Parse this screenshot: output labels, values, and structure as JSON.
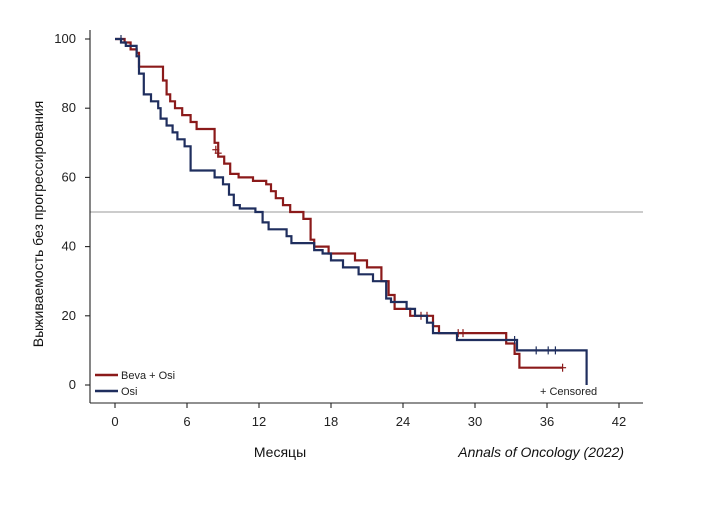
{
  "chart_data": {
    "type": "line",
    "step": true,
    "xlabel": "Месяцы",
    "ylabel": "Выживаемость без прогрессирования",
    "source": "Annals of Oncology (2022)",
    "censored_note": "+ Censored",
    "xlim": [
      -2,
      44
    ],
    "ylim": [
      -5,
      105
    ],
    "xticks": [
      0,
      6,
      12,
      18,
      24,
      30,
      36,
      42
    ],
    "yticks": [
      0,
      20,
      40,
      60,
      80,
      100
    ],
    "reference_line_y": 50,
    "legend_position": "bottom-left",
    "series": [
      {
        "name": "Beva + Osi",
        "color": "#8b1a1a",
        "points": [
          [
            0,
            100
          ],
          [
            0.8,
            100
          ],
          [
            0.8,
            99
          ],
          [
            1.3,
            99
          ],
          [
            1.3,
            97
          ],
          [
            1.8,
            97
          ],
          [
            1.8,
            96
          ],
          [
            2.0,
            96
          ],
          [
            2.0,
            92
          ],
          [
            4.0,
            92
          ],
          [
            4.0,
            88
          ],
          [
            4.3,
            88
          ],
          [
            4.3,
            84
          ],
          [
            4.6,
            84
          ],
          [
            4.6,
            82
          ],
          [
            5.0,
            82
          ],
          [
            5.0,
            80
          ],
          [
            5.6,
            80
          ],
          [
            5.6,
            78
          ],
          [
            6.3,
            78
          ],
          [
            6.3,
            76
          ],
          [
            6.8,
            76
          ],
          [
            6.8,
            74
          ],
          [
            8.3,
            74
          ],
          [
            8.3,
            70
          ],
          [
            8.6,
            70
          ],
          [
            8.6,
            66
          ],
          [
            9.1,
            66
          ],
          [
            9.1,
            64
          ],
          [
            9.6,
            64
          ],
          [
            9.6,
            61
          ],
          [
            10.3,
            61
          ],
          [
            10.3,
            60
          ],
          [
            11.5,
            60
          ],
          [
            11.5,
            59
          ],
          [
            12.6,
            59
          ],
          [
            12.6,
            58
          ],
          [
            13.0,
            58
          ],
          [
            13.0,
            56
          ],
          [
            13.4,
            56
          ],
          [
            13.4,
            54
          ],
          [
            14.0,
            54
          ],
          [
            14.0,
            52
          ],
          [
            14.6,
            52
          ],
          [
            14.6,
            50
          ],
          [
            15.7,
            50
          ],
          [
            15.7,
            48
          ],
          [
            16.3,
            48
          ],
          [
            16.3,
            42
          ],
          [
            16.6,
            42
          ],
          [
            16.6,
            40
          ],
          [
            17.8,
            40
          ],
          [
            17.8,
            38
          ],
          [
            20.0,
            38
          ],
          [
            20.0,
            36
          ],
          [
            21.0,
            36
          ],
          [
            21.0,
            34
          ],
          [
            22.2,
            34
          ],
          [
            22.2,
            30
          ],
          [
            22.8,
            30
          ],
          [
            22.8,
            26
          ],
          [
            23.3,
            26
          ],
          [
            23.3,
            22
          ],
          [
            24.6,
            22
          ],
          [
            24.6,
            20
          ],
          [
            26.5,
            20
          ],
          [
            26.5,
            17
          ],
          [
            27.0,
            17
          ],
          [
            27.0,
            15
          ],
          [
            32.6,
            15
          ],
          [
            32.6,
            12
          ],
          [
            33.3,
            12
          ],
          [
            33.3,
            9
          ],
          [
            33.7,
            9
          ],
          [
            33.7,
            5
          ],
          [
            37.3,
            5
          ]
        ],
        "censored": [
          [
            8.4,
            68
          ],
          [
            8.6,
            67
          ],
          [
            25.5,
            20
          ],
          [
            26.0,
            20
          ],
          [
            28.6,
            15
          ],
          [
            29.0,
            15
          ],
          [
            37.3,
            5
          ]
        ]
      },
      {
        "name": "Osi",
        "color": "#1f2e5e",
        "points": [
          [
            0,
            100
          ],
          [
            0.5,
            100
          ],
          [
            0.5,
            99
          ],
          [
            0.9,
            99
          ],
          [
            0.9,
            98
          ],
          [
            1.8,
            98
          ],
          [
            1.8,
            95
          ],
          [
            2.0,
            95
          ],
          [
            2.0,
            90
          ],
          [
            2.4,
            90
          ],
          [
            2.4,
            84
          ],
          [
            3.0,
            84
          ],
          [
            3.0,
            82
          ],
          [
            3.6,
            82
          ],
          [
            3.6,
            80
          ],
          [
            3.8,
            80
          ],
          [
            3.8,
            77
          ],
          [
            4.3,
            77
          ],
          [
            4.3,
            75
          ],
          [
            4.8,
            75
          ],
          [
            4.8,
            73
          ],
          [
            5.2,
            73
          ],
          [
            5.2,
            71
          ],
          [
            5.8,
            71
          ],
          [
            5.8,
            69
          ],
          [
            6.3,
            69
          ],
          [
            6.3,
            62
          ],
          [
            8.3,
            62
          ],
          [
            8.3,
            60
          ],
          [
            9.0,
            60
          ],
          [
            9.0,
            58
          ],
          [
            9.5,
            58
          ],
          [
            9.5,
            55
          ],
          [
            9.9,
            55
          ],
          [
            9.9,
            52
          ],
          [
            10.4,
            52
          ],
          [
            10.4,
            51
          ],
          [
            11.7,
            51
          ],
          [
            11.7,
            50
          ],
          [
            12.3,
            50
          ],
          [
            12.3,
            47
          ],
          [
            12.8,
            47
          ],
          [
            12.8,
            45
          ],
          [
            14.3,
            45
          ],
          [
            14.3,
            43
          ],
          [
            14.7,
            43
          ],
          [
            14.7,
            41
          ],
          [
            16.6,
            41
          ],
          [
            16.6,
            39
          ],
          [
            17.3,
            39
          ],
          [
            17.3,
            38
          ],
          [
            18.0,
            38
          ],
          [
            18.0,
            36
          ],
          [
            19.0,
            36
          ],
          [
            19.0,
            34
          ],
          [
            20.3,
            34
          ],
          [
            20.3,
            32
          ],
          [
            21.5,
            32
          ],
          [
            21.5,
            30
          ],
          [
            22.6,
            30
          ],
          [
            22.6,
            25
          ],
          [
            23.0,
            25
          ],
          [
            23.0,
            24
          ],
          [
            24.3,
            24
          ],
          [
            24.3,
            22
          ],
          [
            25.0,
            22
          ],
          [
            25.0,
            20
          ],
          [
            26.0,
            20
          ],
          [
            26.0,
            18
          ],
          [
            26.5,
            18
          ],
          [
            26.5,
            15
          ],
          [
            28.5,
            15
          ],
          [
            28.5,
            13
          ],
          [
            33.5,
            13
          ],
          [
            33.5,
            10
          ],
          [
            39.3,
            10
          ],
          [
            39.3,
            0
          ]
        ],
        "censored": [
          [
            0.5,
            100
          ],
          [
            33.3,
            13
          ],
          [
            35.1,
            10
          ],
          [
            36.1,
            10
          ],
          [
            36.7,
            10
          ]
        ]
      }
    ]
  }
}
